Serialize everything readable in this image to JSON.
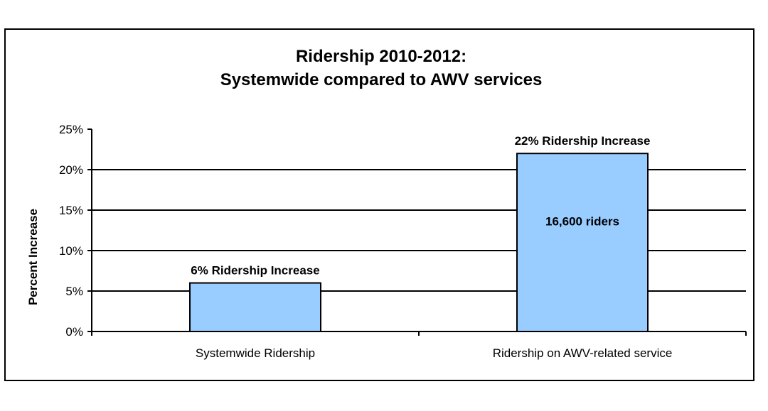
{
  "chart_data": {
    "type": "bar",
    "title": [
      "Ridership 2010-2012:",
      "Systemwide compared to AWV services"
    ],
    "xlabel": "",
    "ylabel": "Percent Increase",
    "ylim": [
      0,
      25
    ],
    "yticks": [
      {
        "value": 0,
        "label": "0%"
      },
      {
        "value": 5,
        "label": "5%"
      },
      {
        "value": 10,
        "label": "10%"
      },
      {
        "value": 15,
        "label": "15%"
      },
      {
        "value": 20,
        "label": "20%"
      },
      {
        "value": 25,
        "label": "25%"
      }
    ],
    "grid": true,
    "categories": [
      "Systemwide Ridership",
      "Ridership on AWV-related service"
    ],
    "values": [
      6,
      22
    ],
    "top_labels": [
      "6% Ridership Increase",
      "22% Ridership Increase"
    ],
    "inside_labels": [
      "",
      "16,600 riders"
    ],
    "bar_color": "#99ccff",
    "bar_edge_color": "#000000"
  }
}
